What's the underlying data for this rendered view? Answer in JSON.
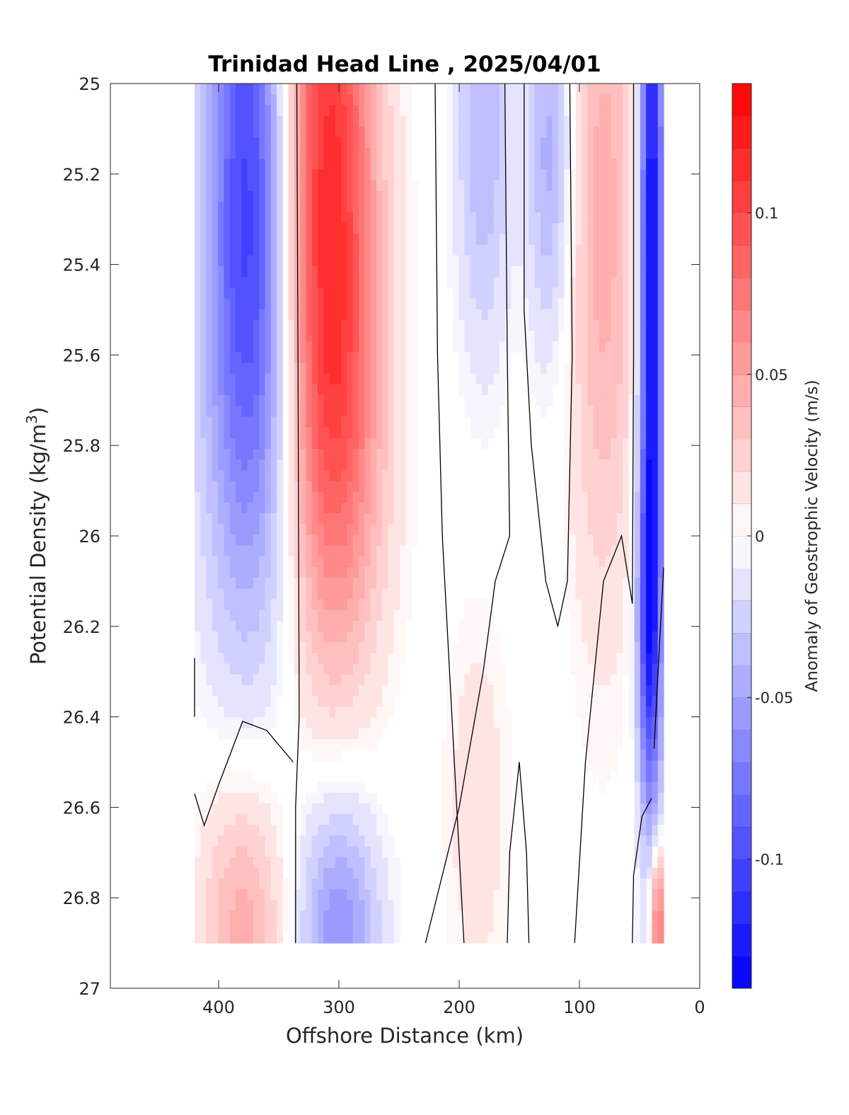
{
  "chart_data": {
    "type": "heatmap",
    "title": "Trinidad Head Line , 2025/04/01",
    "xlabel": "Offshore Distance (km)",
    "ylabel": "Potential Density (kg/m^3)",
    "ylabel_main": "Potential Density (kg/m",
    "ylabel_sup": "3",
    "ylabel_close": ")",
    "xlim": [
      490,
      0
    ],
    "x_reversed": true,
    "ylim": [
      25,
      27
    ],
    "y_reversed": true,
    "x_ticks": [
      400,
      300,
      200,
      100,
      0
    ],
    "x_tick_labels": [
      "400",
      "300",
      "200",
      "100",
      "0"
    ],
    "y_ticks": [
      25,
      25.2,
      25.4,
      25.6,
      25.8,
      26,
      26.2,
      26.4,
      26.6,
      26.8,
      27
    ],
    "y_tick_labels": [
      "25",
      "25.2",
      "25.4",
      "25.6",
      "25.8",
      "26",
      "26.2",
      "26.4",
      "26.6",
      "26.8",
      "27"
    ],
    "grid": false,
    "colormap": "blue-white-red",
    "color_negative": "#0000ff",
    "color_zero": "#ffffff",
    "color_positive": "#ff0000",
    "contour_color": "#000000",
    "colorbar": {
      "label": "Anomaly of Geostrophic Velocity (m/s)",
      "limits": [
        -0.14,
        0.14
      ],
      "levels": 28,
      "ticks": [
        0.1,
        0.05,
        0,
        -0.05,
        -0.1
      ],
      "tick_labels": [
        "0.1",
        "0.05",
        "0",
        "-0.05",
        "-0.1"
      ]
    },
    "data_extent": {
      "x": [
        420,
        30
      ],
      "y": [
        25,
        26.9
      ]
    },
    "anomaly_features": [
      {
        "x": 375,
        "y": 25.05,
        "value": -0.085,
        "sx": 24,
        "sy": 0.55
      },
      {
        "x": 370,
        "y": 25.7,
        "value": -0.05,
        "sx": 32,
        "sy": 0.45
      },
      {
        "x": 310,
        "y": 25.1,
        "value": 0.105,
        "sx": 28,
        "sy": 0.55
      },
      {
        "x": 305,
        "y": 25.8,
        "value": 0.06,
        "sx": 30,
        "sy": 0.4
      },
      {
        "x": 180,
        "y": 25.1,
        "value": -0.04,
        "sx": 16,
        "sy": 0.35
      },
      {
        "x": 125,
        "y": 25.15,
        "value": -0.045,
        "sx": 13,
        "sy": 0.3
      },
      {
        "x": 80,
        "y": 25.3,
        "value": 0.045,
        "sx": 20,
        "sy": 0.6
      },
      {
        "x": 40,
        "y": 25.4,
        "value": -0.14,
        "sx": 7,
        "sy": 0.8
      },
      {
        "x": 43,
        "y": 26.2,
        "value": -0.06,
        "sx": 7,
        "sy": 0.25
      },
      {
        "x": 380,
        "y": 26.85,
        "value": 0.045,
        "sx": 25,
        "sy": 0.22
      },
      {
        "x": 300,
        "y": 26.88,
        "value": -0.06,
        "sx": 24,
        "sy": 0.22
      },
      {
        "x": 185,
        "y": 26.6,
        "value": 0.018,
        "sx": 18,
        "sy": 0.3
      },
      {
        "x": 35,
        "y": 26.85,
        "value": 0.09,
        "sx": 5,
        "sy": 0.12
      }
    ],
    "contour_lines": [
      [
        [
          335,
          25
        ],
        [
          334,
          25.6
        ],
        [
          333,
          26.4
        ],
        [
          336,
          26.6
        ],
        [
          336,
          26.9
        ]
      ],
      [
        [
          220,
          25
        ],
        [
          218,
          25.6
        ],
        [
          214,
          26.0
        ],
        [
          206,
          26.4
        ],
        [
          196,
          26.9
        ]
      ],
      [
        [
          162,
          25
        ],
        [
          160,
          25.6
        ],
        [
          158,
          26.0
        ],
        [
          170,
          26.1
        ],
        [
          180,
          26.3
        ],
        [
          200,
          26.6
        ],
        [
          228,
          26.9
        ]
      ],
      [
        [
          108,
          25
        ],
        [
          106,
          25.6
        ],
        [
          110,
          26.1
        ],
        [
          118,
          26.2
        ],
        [
          128,
          26.1
        ],
        [
          140,
          25.8
        ],
        [
          146,
          25.5
        ],
        [
          146,
          25.0
        ]
      ],
      [
        [
          55,
          25
        ],
        [
          55,
          25.6
        ],
        [
          56,
          26.15
        ],
        [
          65,
          26.0
        ],
        [
          80,
          26.1
        ],
        [
          95,
          26.5
        ],
        [
          104,
          26.9
        ]
      ],
      [
        [
          420,
          26.27
        ],
        [
          420,
          26.4
        ]
      ],
      [
        [
          420,
          26.57
        ],
        [
          412,
          26.64
        ],
        [
          400,
          26.55
        ],
        [
          380,
          26.41
        ],
        [
          360,
          26.43
        ],
        [
          338,
          26.5
        ]
      ],
      [
        [
          160,
          26.9
        ],
        [
          158,
          26.7
        ],
        [
          150,
          26.5
        ],
        [
          144,
          26.7
        ],
        [
          142,
          26.9
        ]
      ],
      [
        [
          38,
          26.47
        ],
        [
          30,
          26.07
        ]
      ],
      [
        [
          40,
          26.58
        ],
        [
          48,
          26.62
        ],
        [
          55,
          26.75
        ],
        [
          56,
          26.9
        ]
      ]
    ]
  }
}
